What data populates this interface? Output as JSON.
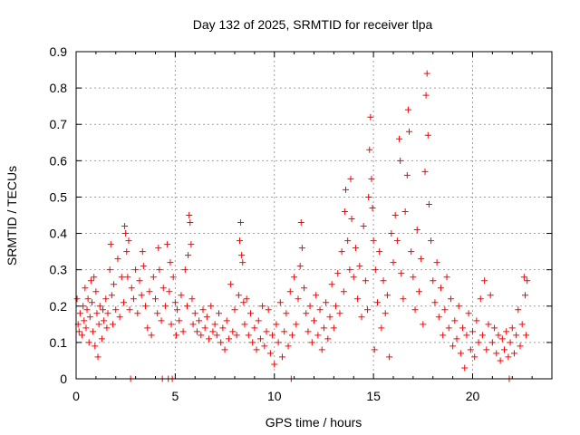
{
  "chart_data": {
    "type": "scatter",
    "title": "Day 132 of 2025, SRMTID for receiver tlpa",
    "xlabel": "GPS time / hours",
    "ylabel": "SRMTID / TECUs",
    "xlim": [
      0,
      24
    ],
    "ylim": [
      0,
      0.9
    ],
    "x_ticks": [
      0,
      5,
      10,
      15,
      20
    ],
    "y_ticks": [
      0,
      0.1,
      0.2,
      0.3,
      0.4,
      0.5,
      0.6,
      0.7,
      0.8,
      0.9
    ],
    "x_tick_labels": [
      "0",
      "5",
      "10",
      "15",
      "20"
    ],
    "y_tick_labels": [
      "0",
      "0.1",
      "0.2",
      "0.3",
      "0.4",
      "0.5",
      "0.6",
      "0.7",
      "0.8",
      "0.9"
    ],
    "grid": true,
    "marker": "+",
    "color": "#ff0000",
    "series": [
      {
        "name": "SRMTID",
        "points": [
          [
            0.05,
            0.22
          ],
          [
            0.1,
            0.15
          ],
          [
            0.15,
            0.13
          ],
          [
            0.2,
            0.18
          ],
          [
            0.3,
            0.12
          ],
          [
            0.35,
            0.2
          ],
          [
            0.4,
            0.16
          ],
          [
            0.45,
            0.25
          ],
          [
            0.5,
            0.14
          ],
          [
            0.55,
            0.19
          ],
          [
            0.6,
            0.22
          ],
          [
            0.65,
            0.1
          ],
          [
            0.7,
            0.17
          ],
          [
            0.75,
            0.27
          ],
          [
            0.8,
            0.21
          ],
          [
            0.85,
            0.13
          ],
          [
            0.9,
            0.28
          ],
          [
            0.95,
            0.09
          ],
          [
            1.0,
            0.24
          ],
          [
            1.05,
            0.18
          ],
          [
            1.1,
            0.06
          ],
          [
            1.15,
            0.15
          ],
          [
            1.2,
            0.2
          ],
          [
            1.3,
            0.11
          ],
          [
            1.35,
            0.19
          ],
          [
            1.4,
            0.16
          ],
          [
            1.5,
            0.22
          ],
          [
            1.55,
            0.14
          ],
          [
            1.6,
            0.18
          ],
          [
            1.7,
            0.3
          ],
          [
            1.75,
            0.37
          ],
          [
            1.8,
            0.23
          ],
          [
            1.85,
            0.15
          ],
          [
            1.9,
            0.26
          ],
          [
            2.0,
            0.19
          ],
          [
            2.1,
            0.33
          ],
          [
            2.2,
            0.17
          ],
          [
            2.3,
            0.28
          ],
          [
            2.4,
            0.21
          ],
          [
            2.45,
            0.42
          ],
          [
            2.5,
            0.4
          ],
          [
            2.55,
            0.35
          ],
          [
            2.6,
            0.28
          ],
          [
            2.65,
            0.38
          ],
          [
            2.7,
            0.19
          ],
          [
            2.75,
            0.0
          ],
          [
            2.8,
            0.25
          ],
          [
            2.9,
            0.22
          ],
          [
            3.0,
            0.3
          ],
          [
            3.1,
            0.18
          ],
          [
            3.2,
            0.27
          ],
          [
            3.3,
            0.23
          ],
          [
            3.35,
            0.35
          ],
          [
            3.4,
            0.31
          ],
          [
            3.5,
            0.2
          ],
          [
            3.6,
            0.14
          ],
          [
            3.7,
            0.24
          ],
          [
            3.8,
            0.12
          ],
          [
            3.9,
            0.28
          ],
          [
            4.0,
            0.22
          ],
          [
            4.1,
            0.18
          ],
          [
            4.15,
            0.36
          ],
          [
            4.2,
            0.3
          ],
          [
            4.3,
            0.16
          ],
          [
            4.35,
            0.0
          ],
          [
            4.4,
            0.25
          ],
          [
            4.5,
            0.2
          ],
          [
            4.6,
            0.37
          ],
          [
            4.65,
            0.0
          ],
          [
            4.7,
            0.24
          ],
          [
            4.75,
            0.32
          ],
          [
            4.8,
            0.15
          ],
          [
            4.85,
            0.0
          ],
          [
            4.9,
            0.28
          ],
          [
            5.0,
            0.21
          ],
          [
            5.05,
            0.12
          ],
          [
            5.1,
            0.19
          ],
          [
            5.2,
            0.16
          ],
          [
            5.3,
            0.23
          ],
          [
            5.4,
            0.13
          ],
          [
            5.5,
            0.3
          ],
          [
            5.6,
            0.2
          ],
          [
            5.65,
            0.34
          ],
          [
            5.7,
            0.45
          ],
          [
            5.75,
            0.43
          ],
          [
            5.8,
            0.37
          ],
          [
            5.85,
            0.22
          ],
          [
            5.9,
            0.15
          ],
          [
            6.0,
            0.18
          ],
          [
            6.1,
            0.13
          ],
          [
            6.2,
            0.16
          ],
          [
            6.3,
            0.12
          ],
          [
            6.4,
            0.19
          ],
          [
            6.5,
            0.14
          ],
          [
            6.6,
            0.17
          ],
          [
            6.7,
            0.11
          ],
          [
            6.8,
            0.2
          ],
          [
            6.9,
            0.13
          ],
          [
            7.0,
            0.15
          ],
          [
            7.1,
            0.12
          ],
          [
            7.2,
            0.18
          ],
          [
            7.3,
            0.1
          ],
          [
            7.4,
            0.14
          ],
          [
            7.5,
            0.08
          ],
          [
            7.6,
            0.16
          ],
          [
            7.7,
            0.11
          ],
          [
            7.8,
            0.26
          ],
          [
            7.9,
            0.13
          ],
          [
            8.0,
            0.19
          ],
          [
            8.1,
            0.12
          ],
          [
            8.2,
            0.23
          ],
          [
            8.25,
            0.38
          ],
          [
            8.3,
            0.43
          ],
          [
            8.35,
            0.34
          ],
          [
            8.4,
            0.32
          ],
          [
            8.45,
            0.21
          ],
          [
            8.5,
            0.15
          ],
          [
            8.6,
            0.22
          ],
          [
            8.7,
            0.12
          ],
          [
            8.8,
            0.18
          ],
          [
            8.9,
            0.1
          ],
          [
            9.0,
            0.14
          ],
          [
            9.1,
            0.08
          ],
          [
            9.2,
            0.16
          ],
          [
            9.3,
            0.11
          ],
          [
            9.4,
            0.2
          ],
          [
            9.5,
            0.09
          ],
          [
            9.6,
            0.13
          ],
          [
            9.7,
            0.19
          ],
          [
            9.8,
            0.07
          ],
          [
            9.9,
            0.12
          ],
          [
            10.0,
            0.04
          ],
          [
            10.1,
            0.15
          ],
          [
            10.2,
            0.1
          ],
          [
            10.3,
            0.21
          ],
          [
            10.4,
            0.06
          ],
          [
            10.5,
            0.13
          ],
          [
            10.6,
            0.18
          ],
          [
            10.7,
            0.09
          ],
          [
            10.8,
            0.24
          ],
          [
            10.85,
            0.0
          ],
          [
            10.9,
            0.12
          ],
          [
            11.0,
            0.28
          ],
          [
            11.1,
            0.15
          ],
          [
            11.2,
            0.22
          ],
          [
            11.3,
            0.31
          ],
          [
            11.35,
            0.43
          ],
          [
            11.4,
            0.36
          ],
          [
            11.5,
            0.25
          ],
          [
            11.6,
            0.18
          ],
          [
            11.7,
            0.13
          ],
          [
            11.8,
            0.2
          ],
          [
            11.9,
            0.1
          ],
          [
            12.0,
            0.16
          ],
          [
            12.1,
            0.23
          ],
          [
            12.2,
            0.12
          ],
          [
            12.3,
            0.19
          ],
          [
            12.4,
            0.08
          ],
          [
            12.5,
            0.14
          ],
          [
            12.6,
            0.21
          ],
          [
            12.7,
            0.11
          ],
          [
            12.8,
            0.17
          ],
          [
            12.9,
            0.26
          ],
          [
            13.0,
            0.14
          ],
          [
            13.1,
            0.2
          ],
          [
            13.2,
            0.29
          ],
          [
            13.3,
            0.18
          ],
          [
            13.4,
            0.35
          ],
          [
            13.5,
            0.24
          ],
          [
            13.55,
            0.46
          ],
          [
            13.6,
            0.52
          ],
          [
            13.7,
            0.38
          ],
          [
            13.8,
            0.3
          ],
          [
            13.85,
            0.55
          ],
          [
            13.9,
            0.44
          ],
          [
            14.0,
            0.28
          ],
          [
            14.1,
            0.36
          ],
          [
            14.2,
            0.22
          ],
          [
            14.3,
            0.31
          ],
          [
            14.4,
            0.17
          ],
          [
            14.5,
            0.42
          ],
          [
            14.6,
            0.27
          ],
          [
            14.7,
            0.19
          ],
          [
            14.75,
            0.5
          ],
          [
            14.8,
            0.63
          ],
          [
            14.85,
            0.72
          ],
          [
            14.9,
            0.55
          ],
          [
            14.95,
            0.47
          ],
          [
            15.0,
            0.38
          ],
          [
            15.05,
            0.08
          ],
          [
            15.1,
            0.3
          ],
          [
            15.2,
            0.21
          ],
          [
            15.3,
            0.35
          ],
          [
            15.4,
            0.14
          ],
          [
            15.5,
            0.27
          ],
          [
            15.6,
            0.18
          ],
          [
            15.7,
            0.23
          ],
          [
            15.8,
            0.06
          ],
          [
            15.9,
            0.4
          ],
          [
            16.0,
            0.32
          ],
          [
            16.1,
            0.45
          ],
          [
            16.2,
            0.38
          ],
          [
            16.3,
            0.66
          ],
          [
            16.35,
            0.6
          ],
          [
            16.4,
            0.29
          ],
          [
            16.5,
            0.22
          ],
          [
            16.6,
            0.46
          ],
          [
            16.7,
            0.56
          ],
          [
            16.75,
            0.74
          ],
          [
            16.8,
            0.68
          ],
          [
            16.9,
            0.35
          ],
          [
            17.0,
            0.28
          ],
          [
            17.1,
            0.19
          ],
          [
            17.2,
            0.41
          ],
          [
            17.3,
            0.24
          ],
          [
            17.4,
            0.33
          ],
          [
            17.5,
            0.15
          ],
          [
            17.6,
            0.57
          ],
          [
            17.65,
            0.78
          ],
          [
            17.7,
            0.84
          ],
          [
            17.75,
            0.67
          ],
          [
            17.8,
            0.48
          ],
          [
            17.9,
            0.38
          ],
          [
            18.0,
            0.27
          ],
          [
            18.1,
            0.21
          ],
          [
            18.2,
            0.32
          ],
          [
            18.3,
            0.17
          ],
          [
            18.4,
            0.25
          ],
          [
            18.5,
            0.12
          ],
          [
            18.6,
            0.19
          ],
          [
            18.7,
            0.28
          ],
          [
            18.8,
            0.14
          ],
          [
            18.9,
            0.22
          ],
          [
            19.0,
            0.09
          ],
          [
            19.1,
            0.16
          ],
          [
            19.2,
            0.11
          ],
          [
            19.3,
            0.2
          ],
          [
            19.4,
            0.07
          ],
          [
            19.5,
            0.14
          ],
          [
            19.6,
            0.03
          ],
          [
            19.7,
            0.12
          ],
          [
            19.8,
            0.18
          ],
          [
            19.9,
            0.08
          ],
          [
            20.0,
            0.13
          ],
          [
            20.1,
            0.06
          ],
          [
            20.2,
            0.16
          ],
          [
            20.3,
            0.1
          ],
          [
            20.4,
            0.22
          ],
          [
            20.5,
            0.12
          ],
          [
            20.6,
            0.27
          ],
          [
            20.7,
            0.08
          ],
          [
            20.8,
            0.15
          ],
          [
            20.9,
            0.23
          ],
          [
            21.0,
            0.1
          ],
          [
            21.1,
            0.14
          ],
          [
            21.2,
            0.07
          ],
          [
            21.3,
            0.12
          ],
          [
            21.4,
            0.05
          ],
          [
            21.5,
            0.11
          ],
          [
            21.6,
            0.08
          ],
          [
            21.7,
            0.13
          ],
          [
            21.8,
            0.06
          ],
          [
            21.85,
            0.0
          ],
          [
            21.9,
            0.1
          ],
          [
            22.0,
            0.14
          ],
          [
            22.1,
            0.07
          ],
          [
            22.2,
            0.12
          ],
          [
            22.3,
            0.19
          ],
          [
            22.4,
            0.09
          ],
          [
            22.5,
            0.15
          ],
          [
            22.6,
            0.28
          ],
          [
            22.65,
            0.23
          ],
          [
            22.7,
            0.12
          ],
          [
            22.75,
            0.27
          ]
        ]
      }
    ]
  }
}
